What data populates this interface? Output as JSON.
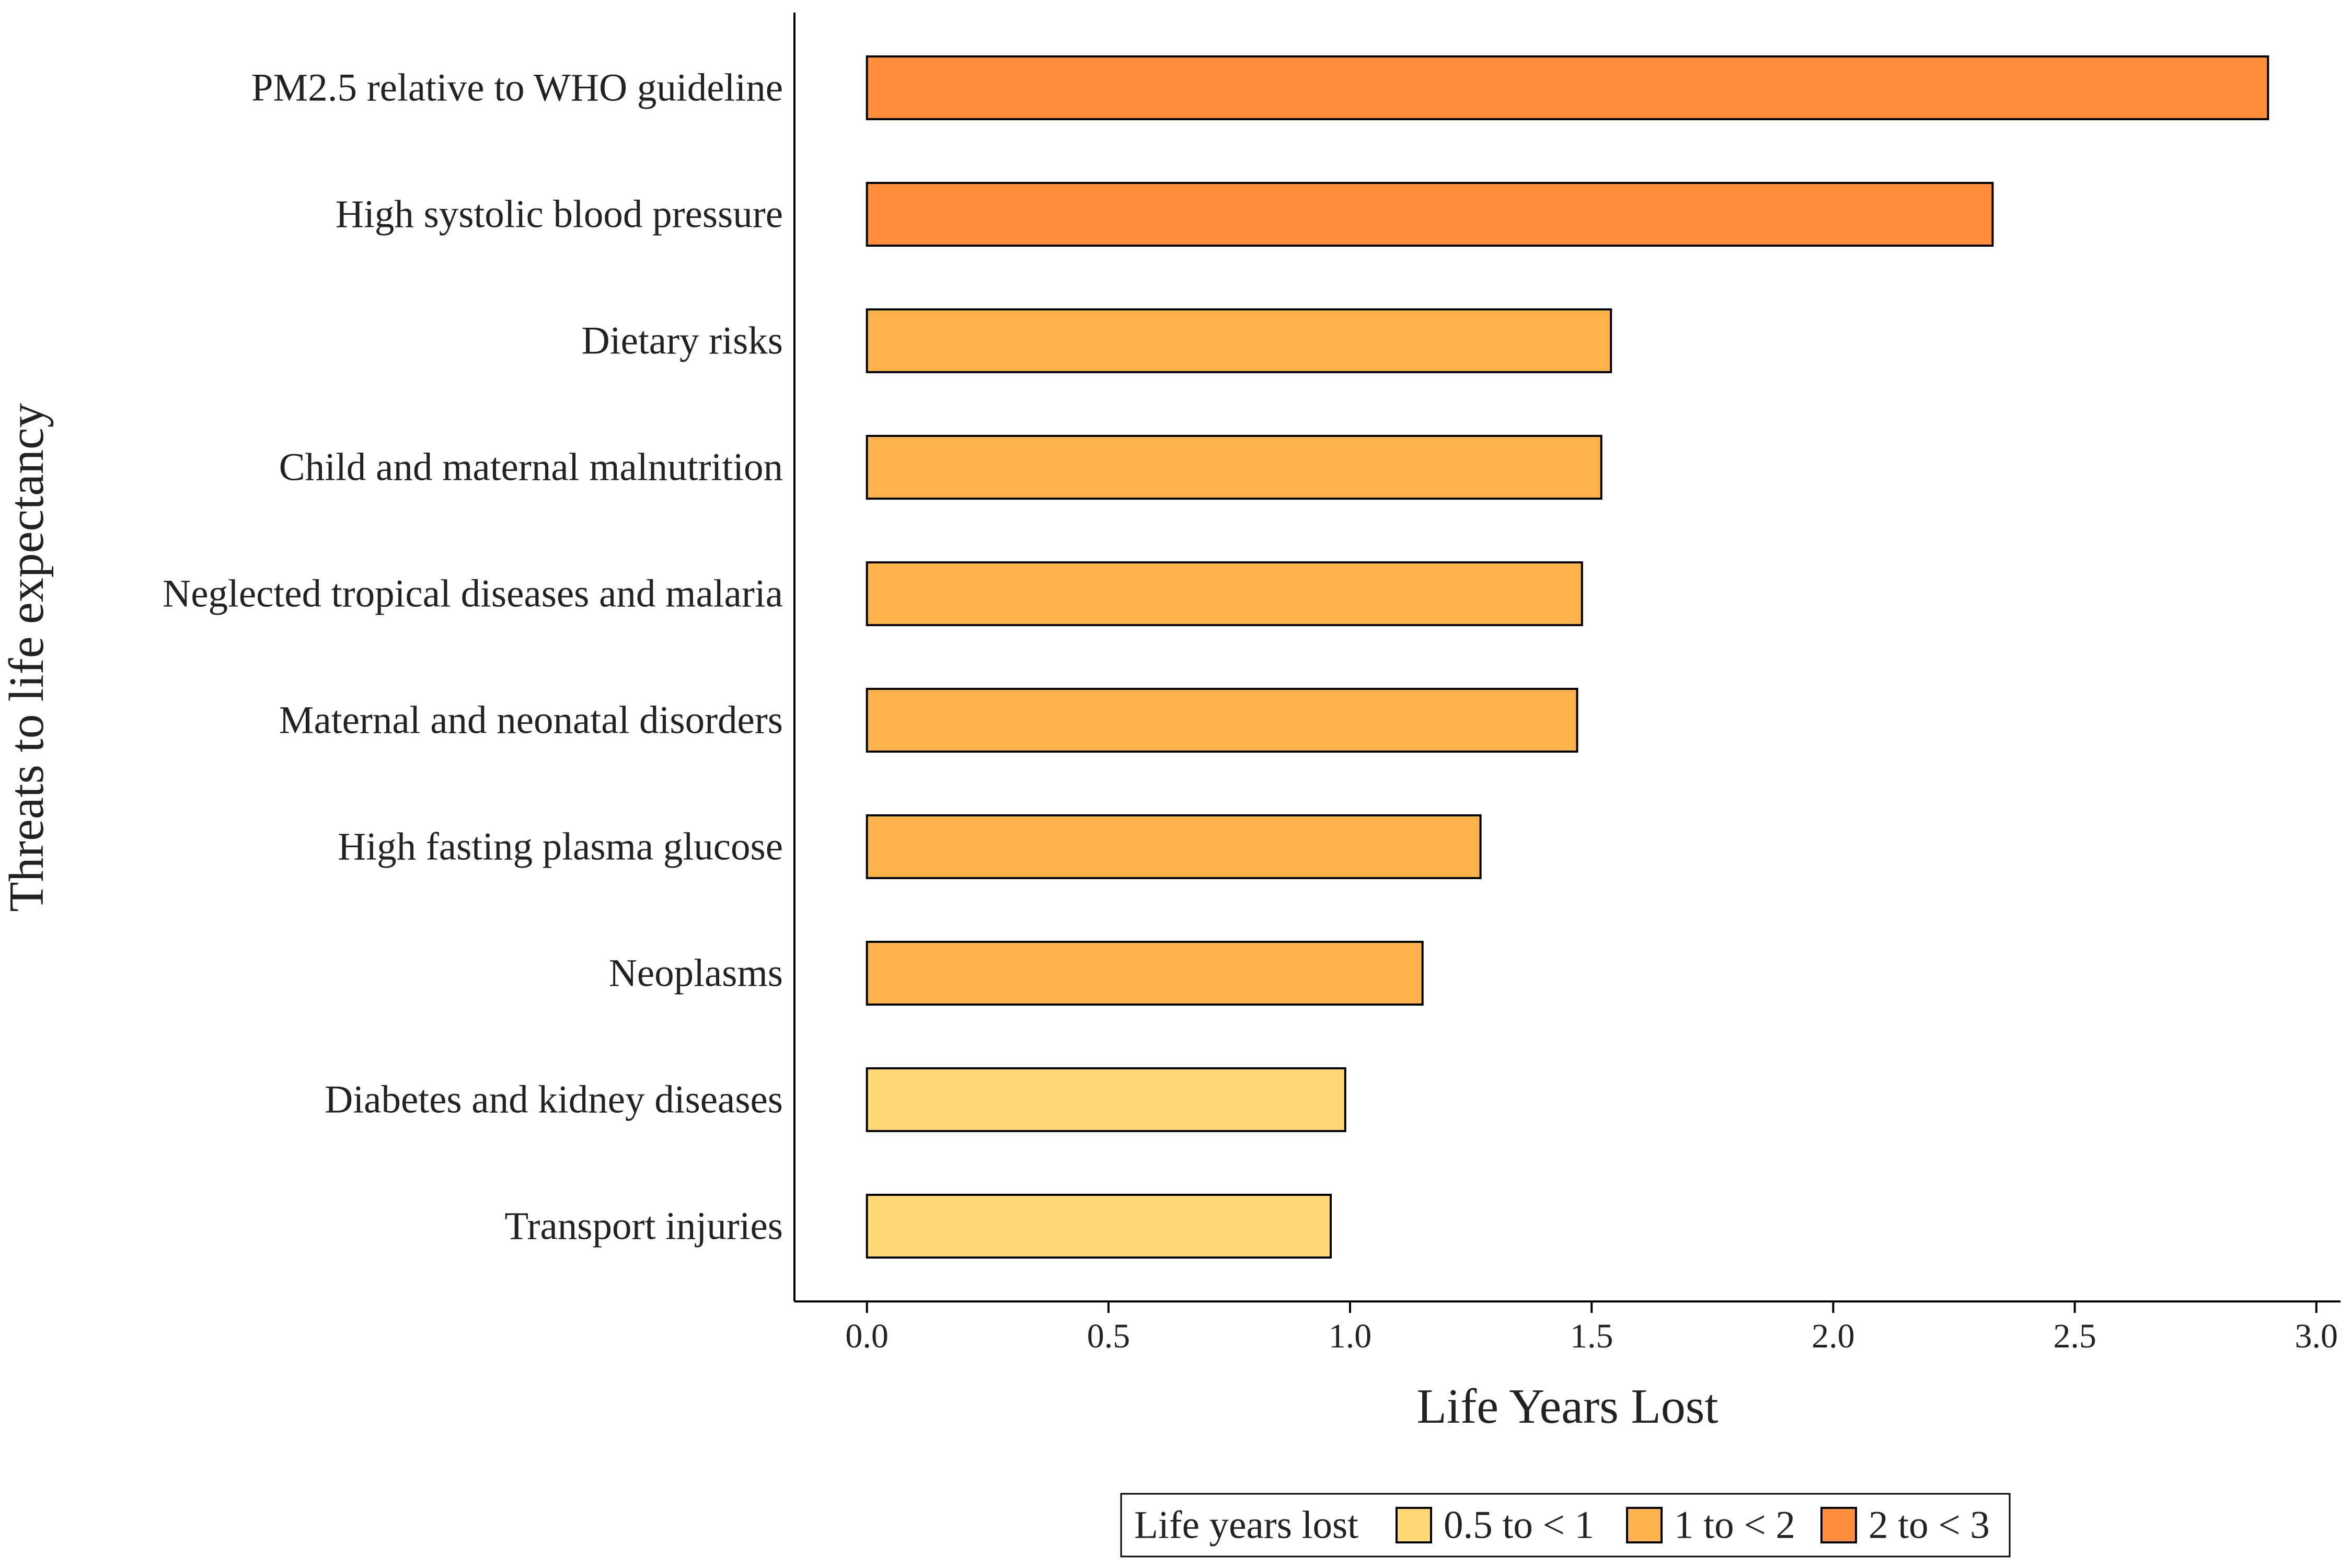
{
  "chart_data": {
    "type": "bar",
    "orientation": "horizontal",
    "categories": [
      "PM2.5 relative to WHO guideline",
      "High systolic blood pressure",
      "Dietary risks",
      "Child and maternal malnutrition",
      "Neglected tropical diseases and malaria",
      "Maternal and neonatal disorders",
      "High fasting plasma glucose",
      "Neoplasms",
      "Diabetes and kidney diseases",
      "Transport injuries"
    ],
    "values": [
      2.9,
      2.33,
      1.54,
      1.52,
      1.48,
      1.47,
      1.27,
      1.15,
      0.99,
      0.96
    ],
    "groups": [
      "2 to < 3",
      "2 to < 3",
      "1 to < 2",
      "1 to < 2",
      "1 to < 2",
      "1 to < 2",
      "1 to < 2",
      "1 to < 2",
      "0.5 to < 1",
      "0.5 to < 1"
    ],
    "xlabel": "Life Years Lost",
    "ylabel": "Threats to life expectancy",
    "xlim": [
      -0.15,
      3.05
    ],
    "xticks": [
      0.0,
      0.5,
      1.0,
      1.5,
      2.0,
      2.5,
      3.0
    ],
    "xtick_labels": [
      "0.0",
      "0.5",
      "1.0",
      "1.5",
      "2.0",
      "2.5",
      "3.0"
    ],
    "grid": false,
    "legend": {
      "title": "Life years lost",
      "position": "bottom",
      "entries": [
        {
          "label": "0.5 to < 1",
          "color": "#FED976"
        },
        {
          "label": "1 to < 2",
          "color": "#FEB24C"
        },
        {
          "label": "2 to < 3",
          "color": "#FD8D3C"
        }
      ]
    }
  }
}
